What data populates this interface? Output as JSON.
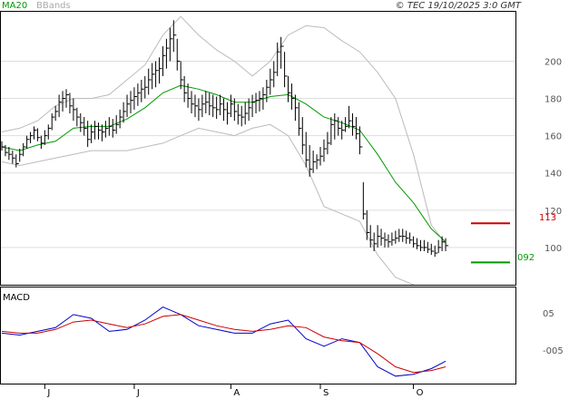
{
  "header": {
    "legend_ma": "MA20",
    "legend_bb": "BBands",
    "copyright": "© TEC 19/10/2025 3:0 GMT"
  },
  "markers": {
    "upper_label": "113",
    "lower_label": "092",
    "upper_color": "#cc0000",
    "lower_color": "#009900"
  },
  "chart_data": [
    {
      "type": "ohlc",
      "x_labels": [
        "J",
        "J",
        "A",
        "S",
        "O"
      ],
      "yticks": [
        100,
        120,
        140,
        160,
        180,
        200
      ],
      "yticks_labels": [
        "100",
        "120",
        "140",
        "160",
        "180",
        "200"
      ],
      "ylim": [
        80,
        227
      ],
      "xlim": [
        0,
        143
      ],
      "grid": true,
      "ma_color": "#009900",
      "bb_color": "#bbbbbb",
      "x_label_positions": [
        12,
        37,
        64,
        89,
        115
      ],
      "bars": [
        [
          0,
          157,
          152,
          154
        ],
        [
          1,
          155,
          149,
          151
        ],
        [
          2,
          154,
          147,
          150
        ],
        [
          3,
          152,
          145,
          148
        ],
        [
          4,
          150,
          143,
          145
        ],
        [
          5,
          153,
          146,
          150
        ],
        [
          6,
          156,
          149,
          154
        ],
        [
          7,
          160,
          153,
          158
        ],
        [
          8,
          162,
          156,
          160
        ],
        [
          9,
          165,
          158,
          163
        ],
        [
          10,
          164,
          157,
          159
        ],
        [
          11,
          160,
          153,
          156
        ],
        [
          12,
          163,
          155,
          160
        ],
        [
          13,
          166,
          158,
          164
        ],
        [
          14,
          172,
          163,
          170
        ],
        [
          15,
          176,
          168,
          173
        ],
        [
          16,
          182,
          170,
          178
        ],
        [
          17,
          184,
          173,
          180
        ],
        [
          18,
          185,
          175,
          182
        ],
        [
          19,
          183,
          172,
          176
        ],
        [
          20,
          180,
          168,
          174
        ],
        [
          21,
          175,
          165,
          170
        ],
        [
          22,
          172,
          162,
          167
        ],
        [
          23,
          170,
          160,
          164
        ],
        [
          24,
          168,
          154,
          158
        ],
        [
          25,
          166,
          156,
          162
        ],
        [
          26,
          168,
          158,
          165
        ],
        [
          27,
          167,
          158,
          163
        ],
        [
          28,
          166,
          157,
          162
        ],
        [
          29,
          168,
          159,
          164
        ],
        [
          30,
          170,
          160,
          165
        ],
        [
          31,
          169,
          159,
          163
        ],
        [
          32,
          171,
          161,
          166
        ],
        [
          33,
          174,
          164,
          170
        ],
        [
          34,
          178,
          167,
          173
        ],
        [
          35,
          182,
          170,
          177
        ],
        [
          36,
          184,
          172,
          179
        ],
        [
          37,
          186,
          174,
          181
        ],
        [
          38,
          188,
          176,
          183
        ],
        [
          39,
          190,
          178,
          185
        ],
        [
          40,
          192,
          180,
          186
        ],
        [
          41,
          196,
          182,
          190
        ],
        [
          42,
          199,
          185,
          193
        ],
        [
          43,
          200,
          186,
          195
        ],
        [
          44,
          202,
          188,
          196
        ],
        [
          45,
          208,
          192,
          203
        ],
        [
          46,
          212,
          196,
          207
        ],
        [
          47,
          218,
          200,
          212
        ],
        [
          48,
          222,
          205,
          214
        ],
        [
          49,
          212,
          195,
          200
        ],
        [
          50,
          200,
          185,
          190
        ],
        [
          51,
          192,
          178,
          183
        ],
        [
          52,
          188,
          175,
          180
        ],
        [
          53,
          184,
          172,
          177
        ],
        [
          54,
          182,
          170,
          176
        ],
        [
          55,
          180,
          168,
          174
        ],
        [
          56,
          182,
          170,
          177
        ],
        [
          57,
          184,
          172,
          178
        ],
        [
          58,
          183,
          171,
          176
        ],
        [
          59,
          182,
          170,
          175
        ],
        [
          60,
          181,
          169,
          174
        ],
        [
          61,
          182,
          171,
          177
        ],
        [
          62,
          180,
          168,
          174
        ],
        [
          63,
          178,
          166,
          172
        ],
        [
          64,
          182,
          170,
          177
        ],
        [
          65,
          180,
          168,
          173
        ],
        [
          66,
          177,
          166,
          171
        ],
        [
          67,
          176,
          165,
          170
        ],
        [
          68,
          178,
          166,
          172
        ],
        [
          69,
          180,
          168,
          175
        ],
        [
          70,
          182,
          170,
          178
        ],
        [
          71,
          183,
          172,
          179
        ],
        [
          72,
          184,
          173,
          180
        ],
        [
          73,
          186,
          174,
          182
        ],
        [
          74,
          190,
          178,
          186
        ],
        [
          75,
          196,
          182,
          190
        ],
        [
          76,
          200,
          186,
          194
        ],
        [
          77,
          210,
          192,
          205
        ],
        [
          78,
          213,
          196,
          208
        ],
        [
          79,
          205,
          186,
          192
        ],
        [
          80,
          192,
          178,
          183
        ],
        [
          81,
          188,
          174,
          180
        ],
        [
          82,
          182,
          168,
          175
        ],
        [
          83,
          178,
          160,
          164
        ],
        [
          84,
          170,
          150,
          155
        ],
        [
          85,
          162,
          143,
          147
        ],
        [
          86,
          155,
          138,
          142
        ],
        [
          87,
          152,
          140,
          146
        ],
        [
          88,
          150,
          142,
          147
        ],
        [
          89,
          154,
          144,
          149
        ],
        [
          90,
          158,
          146,
          153
        ],
        [
          91,
          162,
          150,
          156
        ],
        [
          92,
          170,
          155,
          166
        ],
        [
          93,
          172,
          158,
          168
        ],
        [
          94,
          170,
          160,
          164
        ],
        [
          95,
          168,
          158,
          163
        ],
        [
          96,
          170,
          162,
          165
        ],
        [
          97,
          176,
          164,
          168
        ],
        [
          98,
          172,
          160,
          165
        ],
        [
          99,
          170,
          158,
          161
        ],
        [
          100,
          165,
          150,
          154
        ],
        [
          101,
          135,
          115,
          118
        ],
        [
          102,
          120,
          104,
          108
        ],
        [
          103,
          112,
          100,
          104
        ],
        [
          104,
          108,
          98,
          102
        ],
        [
          105,
          112,
          100,
          106
        ],
        [
          106,
          110,
          101,
          105
        ],
        [
          107,
          108,
          100,
          104
        ],
        [
          108,
          107,
          100,
          103
        ],
        [
          109,
          108,
          101,
          104
        ],
        [
          110,
          109,
          102,
          105
        ],
        [
          111,
          110,
          103,
          106
        ],
        [
          112,
          110,
          103,
          106
        ],
        [
          113,
          109,
          102,
          105
        ],
        [
          114,
          108,
          102,
          104
        ],
        [
          115,
          106,
          100,
          102
        ],
        [
          116,
          105,
          99,
          101
        ],
        [
          117,
          104,
          98,
          100
        ],
        [
          118,
          104,
          98,
          100
        ],
        [
          119,
          103,
          97,
          99
        ],
        [
          120,
          102,
          96,
          98
        ],
        [
          121,
          101,
          95,
          97
        ],
        [
          122,
          104,
          97,
          100
        ],
        [
          123,
          106,
          98,
          103
        ],
        [
          124,
          105,
          98,
          101
        ]
      ],
      "ma20": [
        [
          0,
          154
        ],
        [
          5,
          152
        ],
        [
          10,
          155
        ],
        [
          15,
          157
        ],
        [
          20,
          164
        ],
        [
          25,
          165
        ],
        [
          30,
          165
        ],
        [
          35,
          169
        ],
        [
          40,
          175
        ],
        [
          45,
          183
        ],
        [
          50,
          187
        ],
        [
          55,
          185
        ],
        [
          60,
          182
        ],
        [
          65,
          178
        ],
        [
          70,
          178
        ],
        [
          75,
          181
        ],
        [
          80,
          182
        ],
        [
          85,
          177
        ],
        [
          90,
          170
        ],
        [
          95,
          167
        ],
        [
          100,
          163
        ],
        [
          105,
          150
        ],
        [
          110,
          135
        ],
        [
          115,
          124
        ],
        [
          120,
          110
        ],
        [
          124,
          103
        ]
      ],
      "bb_upper": [
        [
          0,
          162
        ],
        [
          5,
          164
        ],
        [
          10,
          168
        ],
        [
          15,
          176
        ],
        [
          20,
          180
        ],
        [
          25,
          180
        ],
        [
          30,
          182
        ],
        [
          35,
          190
        ],
        [
          40,
          198
        ],
        [
          45,
          214
        ],
        [
          50,
          224
        ],
        [
          55,
          214
        ],
        [
          60,
          206
        ],
        [
          65,
          200
        ],
        [
          70,
          192
        ],
        [
          75,
          200
        ],
        [
          80,
          214
        ],
        [
          85,
          219
        ],
        [
          90,
          218
        ],
        [
          95,
          211
        ],
        [
          100,
          205
        ],
        [
          105,
          194
        ],
        [
          110,
          180
        ],
        [
          115,
          150
        ],
        [
          120,
          112
        ],
        [
          124,
          102
        ]
      ],
      "bb_lower": [
        [
          0,
          146
        ],
        [
          5,
          144
        ],
        [
          10,
          146
        ],
        [
          15,
          148
        ],
        [
          20,
          150
        ],
        [
          25,
          152
        ],
        [
          30,
          152
        ],
        [
          35,
          152
        ],
        [
          40,
          154
        ],
        [
          45,
          156
        ],
        [
          50,
          160
        ],
        [
          55,
          164
        ],
        [
          60,
          162
        ],
        [
          65,
          160
        ],
        [
          70,
          164
        ],
        [
          75,
          166
        ],
        [
          80,
          160
        ],
        [
          85,
          144
        ],
        [
          90,
          122
        ],
        [
          95,
          118
        ],
        [
          100,
          114
        ],
        [
          105,
          96
        ],
        [
          110,
          84
        ],
        [
          115,
          80
        ]
      ],
      "upper_marker_value": 113,
      "lower_marker_value": 92
    },
    {
      "type": "line",
      "title": "MACD",
      "yticks_labels": [
        "05",
        "-005"
      ],
      "yticks": [
        0.05,
        -0.05
      ],
      "ylim": [
        -0.14,
        0.12
      ],
      "macd_color": "#0000cc",
      "signal_color": "#cc0000",
      "macd": [
        [
          0,
          -0.005
        ],
        [
          5,
          -0.01
        ],
        [
          10,
          0.0
        ],
        [
          15,
          0.01
        ],
        [
          20,
          0.045
        ],
        [
          25,
          0.035
        ],
        [
          30,
          0.0
        ],
        [
          35,
          0.005
        ],
        [
          40,
          0.03
        ],
        [
          45,
          0.065
        ],
        [
          50,
          0.045
        ],
        [
          55,
          0.015
        ],
        [
          60,
          0.005
        ],
        [
          65,
          -0.005
        ],
        [
          70,
          -0.005
        ],
        [
          75,
          0.02
        ],
        [
          80,
          0.03
        ],
        [
          85,
          -0.02
        ],
        [
          90,
          -0.04
        ],
        [
          95,
          -0.02
        ],
        [
          100,
          -0.03
        ],
        [
          105,
          -0.095
        ],
        [
          110,
          -0.12
        ],
        [
          115,
          -0.115
        ],
        [
          120,
          -0.1
        ],
        [
          124,
          -0.08
        ]
      ],
      "signal": [
        [
          0,
          0.0
        ],
        [
          5,
          -0.005
        ],
        [
          10,
          -0.005
        ],
        [
          15,
          0.005
        ],
        [
          20,
          0.025
        ],
        [
          25,
          0.03
        ],
        [
          30,
          0.02
        ],
        [
          35,
          0.01
        ],
        [
          40,
          0.02
        ],
        [
          45,
          0.04
        ],
        [
          50,
          0.045
        ],
        [
          55,
          0.03
        ],
        [
          60,
          0.015
        ],
        [
          65,
          0.005
        ],
        [
          70,
          0.0
        ],
        [
          75,
          0.005
        ],
        [
          80,
          0.015
        ],
        [
          85,
          0.01
        ],
        [
          90,
          -0.015
        ],
        [
          95,
          -0.025
        ],
        [
          100,
          -0.03
        ],
        [
          105,
          -0.06
        ],
        [
          110,
          -0.095
        ],
        [
          115,
          -0.11
        ],
        [
          120,
          -0.105
        ],
        [
          124,
          -0.095
        ]
      ]
    }
  ]
}
